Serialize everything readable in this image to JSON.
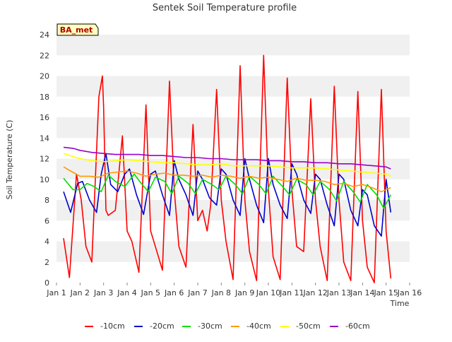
{
  "chart_data": {
    "type": "line",
    "title": "Sentek Soil Temperature profile",
    "station_label": "BA_met",
    "xlabel": "Time",
    "ylabel": "Soil Temperature (C)",
    "xlim": [
      1,
      16
    ],
    "ylim": [
      0,
      24
    ],
    "x_ticks": [
      1,
      2,
      3,
      4,
      5,
      6,
      7,
      8,
      9,
      10,
      11,
      12,
      13,
      14,
      15,
      16
    ],
    "x_tick_labels": [
      "Jan 1",
      "Jan 2",
      "Jan 3",
      "Jan 4",
      "Jan 5",
      "Jan 6",
      "Jan 7",
      "Jan 8",
      "Jan 9",
      "Jan 10",
      "Jan 11",
      "Jan 12",
      "Jan 13",
      "Jan 14",
      "Jan 15",
      "Jan 16"
    ],
    "y_ticks": [
      0,
      2,
      4,
      6,
      8,
      10,
      12,
      14,
      16,
      18,
      20,
      22,
      24
    ],
    "y_tick_labels": [
      "0",
      "2",
      "4",
      "6",
      "8",
      "10",
      "12",
      "14",
      "16",
      "18",
      "20",
      "22",
      "24"
    ],
    "grid": "horizontal alternating bands",
    "legend_position": "bottom",
    "series": [
      {
        "name": "-10cm",
        "color": "#ff0000",
        "x": [
          1.3,
          1.55,
          1.85,
          2.05,
          2.25,
          2.5,
          2.8,
          2.95,
          3.0,
          3.1,
          3.2,
          3.5,
          3.8,
          4.0,
          4.2,
          4.5,
          4.8,
          5.0,
          5.2,
          5.5,
          5.8,
          6.0,
          6.2,
          6.5,
          6.8,
          7.0,
          7.2,
          7.4,
          7.55,
          7.65,
          7.8,
          8.0,
          8.2,
          8.5,
          8.8,
          9.0,
          9.2,
          9.5,
          9.8,
          10.0,
          10.2,
          10.5,
          10.8,
          11.0,
          11.2,
          11.5,
          11.8,
          12.0,
          12.2,
          12.5,
          12.8,
          13.0,
          13.2,
          13.5,
          13.8,
          14.0,
          14.2,
          14.5,
          14.8,
          15.0,
          15.2
        ],
        "y": [
          4.3,
          0.5,
          10.5,
          8.0,
          3.5,
          2.0,
          18.0,
          20.0,
          17.0,
          7.0,
          6.5,
          7.0,
          14.2,
          5.0,
          4.0,
          1.0,
          17.2,
          5.0,
          3.5,
          1.2,
          19.5,
          9.0,
          3.5,
          1.5,
          15.3,
          6.0,
          7.0,
          5.0,
          7.5,
          12.0,
          18.7,
          8.0,
          4.0,
          0.3,
          21.0,
          8.0,
          3.0,
          0.2,
          22.0,
          9.0,
          2.5,
          0.3,
          19.8,
          9.0,
          3.5,
          3.0,
          17.8,
          8.0,
          3.5,
          0.2,
          19.0,
          8.0,
          2.0,
          0.2,
          18.5,
          6.0,
          1.5,
          0.0,
          18.7,
          5.0,
          0.4
        ]
      },
      {
        "name": "-20cm",
        "color": "#0000cc",
        "x": [
          1.3,
          1.6,
          1.9,
          2.1,
          2.4,
          2.7,
          2.9,
          3.1,
          3.3,
          3.6,
          3.9,
          4.1,
          4.4,
          4.7,
          5.0,
          5.2,
          5.5,
          5.8,
          6.0,
          6.2,
          6.5,
          6.8,
          7.0,
          7.2,
          7.5,
          7.8,
          8.0,
          8.2,
          8.5,
          8.8,
          9.0,
          9.2,
          9.5,
          9.8,
          10.0,
          10.2,
          10.5,
          10.8,
          11.0,
          11.2,
          11.5,
          11.8,
          12.0,
          12.2,
          12.5,
          12.8,
          13.0,
          13.2,
          13.5,
          13.8,
          14.0,
          14.2,
          14.5,
          14.8,
          15.0,
          15.2
        ],
        "y": [
          8.8,
          6.8,
          9.6,
          9.8,
          8.0,
          6.8,
          10.5,
          12.5,
          9.5,
          8.8,
          10.5,
          11.0,
          8.5,
          6.6,
          10.5,
          10.8,
          8.5,
          6.5,
          11.8,
          10.0,
          8.5,
          6.5,
          10.8,
          10.0,
          8.2,
          7.5,
          11.0,
          10.5,
          8.0,
          6.5,
          12.0,
          10.0,
          7.5,
          5.8,
          12.0,
          9.5,
          7.5,
          6.2,
          11.5,
          10.5,
          8.0,
          6.7,
          10.5,
          10.0,
          7.5,
          5.5,
          10.5,
          10.0,
          7.0,
          5.5,
          9.0,
          8.5,
          5.5,
          4.5,
          10.0,
          6.8
        ]
      },
      {
        "name": "-30cm",
        "color": "#00e000",
        "x": [
          1.3,
          1.7,
          2.0,
          2.3,
          2.6,
          2.9,
          3.2,
          3.5,
          3.9,
          4.3,
          4.6,
          4.9,
          5.2,
          5.6,
          5.9,
          6.2,
          6.6,
          6.9,
          7.2,
          7.6,
          7.9,
          8.2,
          8.6,
          8.9,
          9.2,
          9.6,
          9.9,
          10.2,
          10.6,
          10.9,
          11.2,
          11.6,
          11.9,
          12.2,
          12.6,
          12.9,
          13.2,
          13.6,
          13.9,
          14.2,
          14.6,
          14.9,
          15.2
        ],
        "y": [
          10.1,
          9.0,
          9.0,
          9.6,
          9.3,
          8.8,
          10.4,
          9.8,
          9.3,
          10.5,
          9.6,
          8.8,
          10.2,
          9.8,
          8.6,
          10.3,
          9.6,
          8.6,
          10.0,
          9.5,
          9.0,
          10.3,
          9.5,
          8.6,
          10.3,
          9.5,
          8.6,
          10.3,
          9.3,
          8.5,
          10.0,
          9.5,
          8.5,
          9.8,
          9.0,
          7.9,
          9.8,
          8.8,
          7.8,
          9.5,
          8.5,
          7.2,
          8.5
        ]
      },
      {
        "name": "-40cm",
        "color": "#ff9900",
        "x": [
          1.3,
          1.6,
          2.0,
          2.4,
          2.8,
          3.2,
          3.6,
          4.0,
          4.4,
          4.8,
          5.2,
          5.6,
          6.0,
          6.4,
          6.8,
          7.2,
          7.6,
          8.0,
          8.4,
          8.8,
          9.2,
          9.6,
          10.0,
          10.4,
          10.8,
          11.2,
          11.6,
          12.0,
          12.4,
          12.8,
          13.2,
          13.6,
          14.0,
          14.4,
          14.8,
          15.2
        ],
        "y": [
          11.2,
          10.8,
          10.3,
          10.3,
          10.2,
          10.6,
          10.7,
          10.8,
          10.6,
          10.3,
          10.5,
          10.6,
          10.4,
          10.4,
          10.3,
          10.4,
          10.2,
          10.4,
          10.3,
          10.1,
          10.3,
          10.1,
          10.2,
          10.0,
          9.8,
          10.1,
          9.9,
          9.9,
          9.8,
          9.5,
          9.6,
          9.3,
          9.5,
          9.2,
          8.8,
          9.2
        ]
      },
      {
        "name": "-50cm",
        "color": "#ffff00",
        "x": [
          1.3,
          1.7,
          2.0,
          2.5,
          3.0,
          3.5,
          4.0,
          4.5,
          5.0,
          5.5,
          6.0,
          6.5,
          7.0,
          7.5,
          8.0,
          8.5,
          9.0,
          9.5,
          10.0,
          10.5,
          11.0,
          11.5,
          12.0,
          12.5,
          13.0,
          13.5,
          14.0,
          14.5,
          15.0,
          15.2
        ],
        "y": [
          12.5,
          12.2,
          12.0,
          11.8,
          11.7,
          11.8,
          11.9,
          11.8,
          11.7,
          11.6,
          11.6,
          11.5,
          11.4,
          11.4,
          11.5,
          11.3,
          11.3,
          11.3,
          11.3,
          11.2,
          11.1,
          11.1,
          11.1,
          11.0,
          10.9,
          10.8,
          10.7,
          10.6,
          10.5,
          10.3
        ]
      },
      {
        "name": "-60cm",
        "color": "#9900cc",
        "x": [
          1.3,
          1.7,
          2.0,
          2.5,
          3.0,
          3.5,
          4.0,
          4.5,
          5.0,
          5.5,
          6.0,
          6.5,
          7.0,
          7.5,
          8.0,
          8.5,
          9.0,
          9.5,
          10.0,
          10.5,
          11.0,
          11.5,
          12.0,
          12.5,
          13.0,
          13.5,
          14.0,
          14.5,
          15.0,
          15.2
        ],
        "y": [
          13.1,
          13.0,
          12.8,
          12.6,
          12.5,
          12.4,
          12.4,
          12.4,
          12.3,
          12.3,
          12.2,
          12.1,
          12.1,
          12.0,
          12.0,
          11.9,
          11.9,
          11.9,
          11.8,
          11.8,
          11.7,
          11.7,
          11.6,
          11.6,
          11.5,
          11.5,
          11.4,
          11.3,
          11.2,
          11.0
        ]
      }
    ]
  }
}
